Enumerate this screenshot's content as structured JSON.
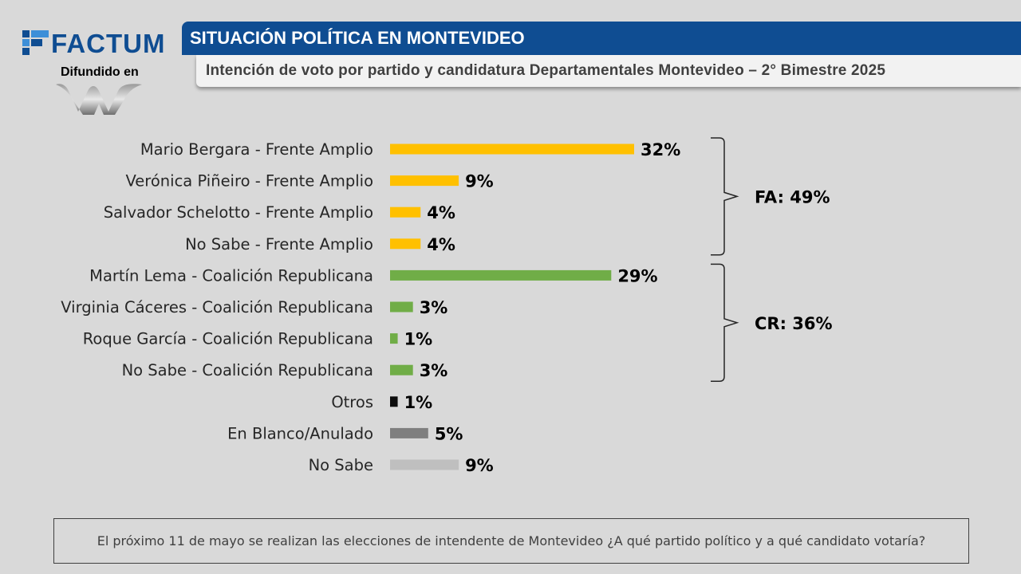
{
  "logo": {
    "brand": "FACTUM",
    "brand_color": "#0f4d92",
    "diffused_label": "Difundido en",
    "diffused_logo_icon": "w-logo-icon"
  },
  "header": {
    "title": "SITUACIÓN POLÍTICA EN MONTEVIDEO",
    "subtitle": "Intención de voto por partido y candidatura Departamentales Montevideo – 2° Bimestre 2025"
  },
  "chart_data": {
    "type": "bar",
    "orientation": "horizontal",
    "categories": [
      "Mario Bergara - Frente Amplio",
      "Verónica Piñeiro - Frente Amplio",
      "Salvador Schelotto - Frente Amplio",
      "No Sabe - Frente Amplio",
      "Martín Lema - Coalición Republicana",
      "Virginia Cáceres - Coalición Republicana",
      "Roque García - Coalición Republicana",
      "No Sabe - Coalición Republicana",
      "Otros",
      "En Blanco/Anulado",
      "No Sabe"
    ],
    "values": [
      32,
      9,
      4,
      4,
      29,
      3,
      1,
      3,
      1,
      5,
      9
    ],
    "value_labels": [
      "32%",
      "9%",
      "4%",
      "4%",
      "29%",
      "3%",
      "1%",
      "3%",
      "1%",
      "5%",
      "9%"
    ],
    "colors": [
      "#ffc000",
      "#ffc000",
      "#ffc000",
      "#ffc000",
      "#70ad47",
      "#70ad47",
      "#70ad47",
      "#70ad47",
      "#0d0d0d",
      "#7f7f7f",
      "#bfbfbf"
    ],
    "groups": [
      {
        "label": "FA: 49%",
        "from": 0,
        "to": 3
      },
      {
        "label": "CR: 36%",
        "from": 4,
        "to": 7
      }
    ],
    "xlim": [
      0,
      34
    ],
    "grid": false
  },
  "footer": {
    "question": "El próximo 11 de mayo se realizan las elecciones de intendente de Montevideo ¿A qué partido político y a qué candidato votaría?"
  }
}
